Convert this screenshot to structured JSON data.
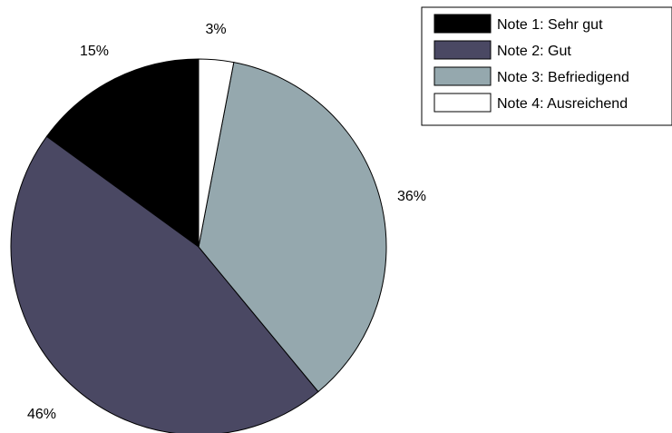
{
  "chart_data": {
    "type": "pie",
    "slices": [
      {
        "label": "Note 1: Sehr gut",
        "value": 15,
        "value_label": "15%",
        "color": "#000000"
      },
      {
        "label": "Note 2: Gut",
        "value": 46,
        "value_label": "46%",
        "color": "#4a4863"
      },
      {
        "label": "Note 3: Befriedigend",
        "value": 36,
        "value_label": "36%",
        "color": "#95a8ae"
      },
      {
        "label": "Note 4: Ausreichend",
        "value": 3,
        "value_label": "3%",
        "color": "#ffffff"
      }
    ],
    "legend_position": "top-right"
  }
}
